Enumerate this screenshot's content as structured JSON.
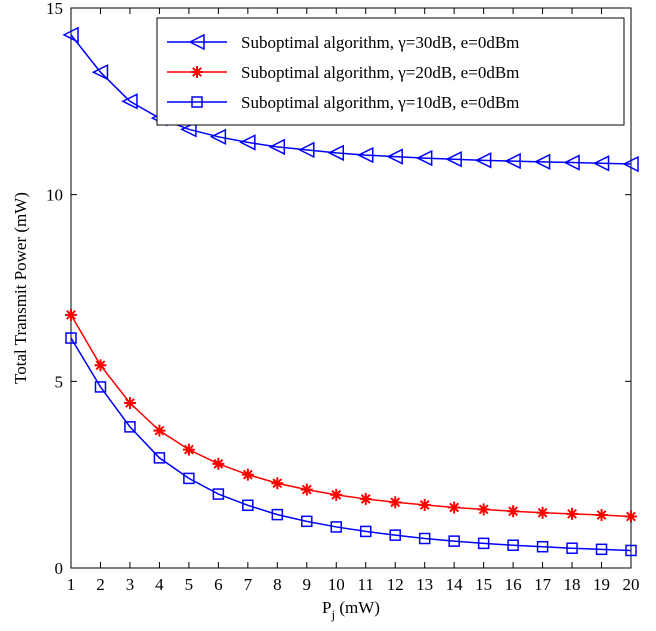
{
  "chart_data": {
    "type": "line",
    "title": "",
    "xlabel": "P",
    "xlabel_sub": "j",
    "xlabel_unit": " (mW)",
    "ylabel": "Total Transmit Power (mW)",
    "xlim": [
      1,
      20
    ],
    "ylim": [
      0,
      15
    ],
    "xticks": [
      1,
      2,
      3,
      4,
      5,
      6,
      7,
      8,
      9,
      10,
      11,
      12,
      13,
      14,
      15,
      16,
      17,
      18,
      19,
      20
    ],
    "yticks": [
      0,
      5,
      10,
      15
    ],
    "grid": false,
    "legend_position": "top-right",
    "x": [
      1,
      2,
      3,
      4,
      5,
      6,
      7,
      8,
      9,
      10,
      11,
      12,
      13,
      14,
      15,
      16,
      17,
      18,
      19,
      20
    ],
    "series": [
      {
        "name": "Suboptimal algorithm, γ=30dB, e=0dBm",
        "color": "#0000ff",
        "marker": "triangle-left",
        "values": [
          14.28,
          13.28,
          12.5,
          12.05,
          11.75,
          11.55,
          11.4,
          11.28,
          11.2,
          11.12,
          11.06,
          11.02,
          10.98,
          10.95,
          10.92,
          10.9,
          10.88,
          10.86,
          10.84,
          10.82
        ]
      },
      {
        "name": "Suboptimal algorithm, γ=20dB, e=0dBm",
        "color": "#ff0000",
        "marker": "asterisk",
        "values": [
          6.78,
          5.43,
          4.42,
          3.68,
          3.17,
          2.79,
          2.5,
          2.27,
          2.1,
          1.96,
          1.85,
          1.76,
          1.69,
          1.62,
          1.57,
          1.52,
          1.48,
          1.45,
          1.42,
          1.38
        ]
      },
      {
        "name": "Suboptimal algorithm, γ=10dB, e=0dBm",
        "color": "#0000ff",
        "marker": "square",
        "values": [
          6.16,
          4.85,
          3.78,
          2.95,
          2.4,
          1.98,
          1.68,
          1.43,
          1.25,
          1.1,
          0.98,
          0.88,
          0.79,
          0.72,
          0.66,
          0.61,
          0.57,
          0.53,
          0.5,
          0.47
        ]
      }
    ]
  }
}
